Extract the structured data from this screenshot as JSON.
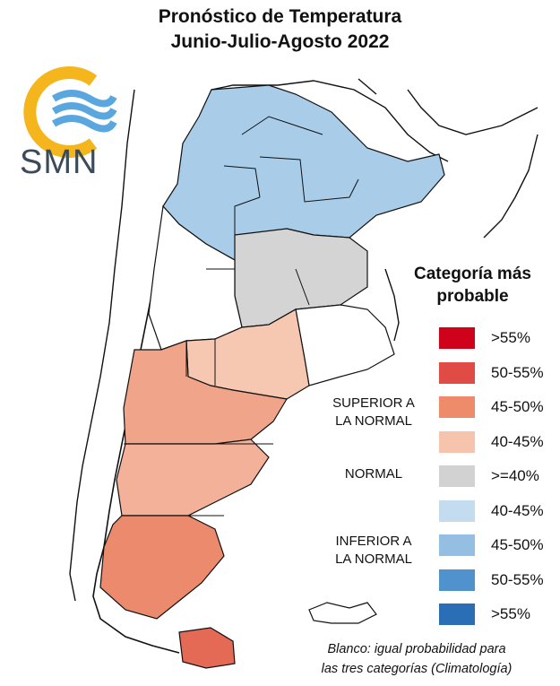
{
  "title": {
    "line1": "Pronóstico de Temperatura",
    "line2": "Junio-Julio-Agosto 2022"
  },
  "logo": {
    "text": "SMN"
  },
  "legend": {
    "title_line1": "Categoría más",
    "title_line2": "probable",
    "groups": {
      "superior": [
        "SUPERIOR A",
        "LA NORMAL"
      ],
      "normal": "NORMAL",
      "inferior": [
        "INFERIOR A",
        "LA NORMAL"
      ]
    },
    "items": [
      {
        "label": ">55%",
        "color": "#d0021b"
      },
      {
        "label": "50-55%",
        "color": "#e04b45"
      },
      {
        "label": "45-50%",
        "color": "#ee8b6a"
      },
      {
        "label": "40-45%",
        "color": "#f6c4ad"
      },
      {
        "label": ">=40%",
        "color": "#d2d2d2"
      },
      {
        "label": "40-45%",
        "color": "#c4dcef"
      },
      {
        "label": "45-50%",
        "color": "#94bfe2"
      },
      {
        "label": "50-55%",
        "color": "#4f92cd"
      },
      {
        "label": ">55%",
        "color": "#2a6fb5"
      }
    ]
  },
  "note": {
    "line1": "Blanco: igual probabilidad para",
    "line2": "las tres categorías (Climatología)"
  }
}
